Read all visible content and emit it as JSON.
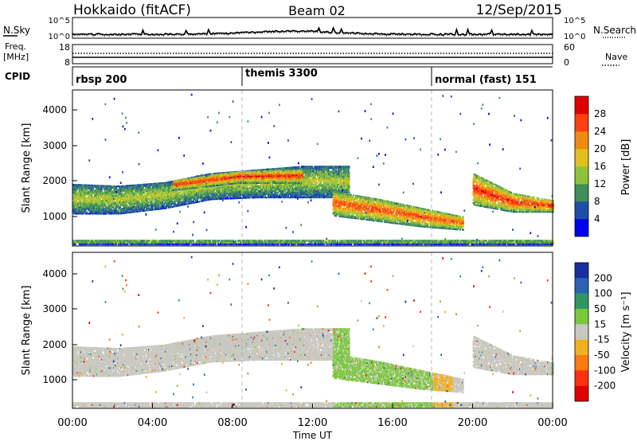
{
  "header": {
    "station": "Hokkaido (fitACF)",
    "beam": "Beam 02",
    "date": "12/Sep/2015"
  },
  "noise": {
    "left_label": "N.Sky",
    "right_label": "N.Search",
    "ticks": [
      "10^5",
      "10^0"
    ]
  },
  "freq_panel": {
    "left_label_line1": "Freq.",
    "left_label_line2": "[MHz]",
    "left_ticks": [
      "18",
      "8"
    ],
    "right_ticks": [
      "60",
      "0"
    ],
    "right_label": "Nave"
  },
  "cpid": {
    "label": "CPID",
    "segments": [
      {
        "start_hour": 0,
        "name": "rbsp 200"
      },
      {
        "start_hour": 8.6,
        "name": "themis 3300"
      },
      {
        "start_hour": 18,
        "name": "normal (fast) 151"
      }
    ]
  },
  "xaxis": {
    "label": "Time UT",
    "ticks": [
      "00:00",
      "04:00",
      "08:00",
      "12:00",
      "16:00",
      "20:00",
      "00:00"
    ],
    "range_hours": [
      0,
      24
    ]
  },
  "power_panel": {
    "ylabel": "Slant Range [km]",
    "yticks": [
      "4000",
      "3000",
      "2000",
      "1000"
    ],
    "colorbar_label": "Power [dB]",
    "colorbar_ticks": [
      "28",
      "24",
      "20",
      "16",
      "12",
      "8",
      "4"
    ]
  },
  "velocity_panel": {
    "ylabel": "Slant Range [km]",
    "yticks": [
      "4000",
      "3000",
      "2000",
      "1000"
    ],
    "colorbar_label": "Velocity [m s⁻¹]",
    "colorbar_ticks": [
      "200",
      "100",
      "50",
      "15",
      "-15",
      "-50",
      "-100",
      "-200"
    ]
  },
  "colors": {
    "power": [
      "#0000ee",
      "#1e4fa8",
      "#3f8f5a",
      "#8fc23a",
      "#e0c020",
      "#f08a10",
      "#ff4010",
      "#e00000"
    ],
    "velocity": [
      "#1a2f9e",
      "#2c62b4",
      "#2f9860",
      "#7ac83a",
      "#c8c8c0",
      "#f0b020",
      "#ff7a10",
      "#ff3010",
      "#e00000"
    ]
  },
  "chart_data": {
    "type": "heatmap",
    "x_units": "hours UT",
    "xlim": [
      0,
      24
    ],
    "ylim_km": [
      180,
      4500
    ],
    "power_bands": [
      {
        "name": "main echo band",
        "t0": 0.0,
        "t1": 13.8,
        "r_lo": [
          1050,
          1050,
          1200,
          1450,
          1500,
          1500,
          1500
        ],
        "r_hi": [
          1900,
          1850,
          1950,
          2200,
          2300,
          2400,
          2400
        ],
        "peak_db": 16
      },
      {
        "name": "intense F band",
        "t0": 5.0,
        "t1": 11.5,
        "r_lo": [
          1700,
          1900,
          1900
        ],
        "r_hi": [
          2000,
          2250,
          2300
        ],
        "peak_db": 28
      },
      {
        "name": "afternoon band",
        "t0": 13.0,
        "t1": 19.5,
        "r_lo": [
          1000,
          850,
          700,
          600
        ],
        "r_hi": [
          1700,
          1500,
          1250,
          1000
        ],
        "peak_db": 26
      },
      {
        "name": "evening band",
        "t0": 20.0,
        "t1": 24.0,
        "r_lo": [
          1300,
          1100,
          1100
        ],
        "r_hi": [
          2200,
          1650,
          1450
        ],
        "peak_db": 28
      },
      {
        "name": "near-range echoes",
        "t0": 0.0,
        "t1": 24.0,
        "r_lo": [
          200
        ],
        "r_hi": [
          350
        ],
        "peak_db": 14
      }
    ],
    "velocity_regions": [
      {
        "name": "low-velocity band",
        "t0": 0.0,
        "t1": 24.0,
        "v_ms": 0
      },
      {
        "name": "positive-velocity patch",
        "t0": 13.0,
        "t1": 18.0,
        "v_ms": 40
      },
      {
        "name": "negative-velocity patch",
        "t0": 18.0,
        "t1": 19.0,
        "v_ms": -40
      }
    ]
  }
}
